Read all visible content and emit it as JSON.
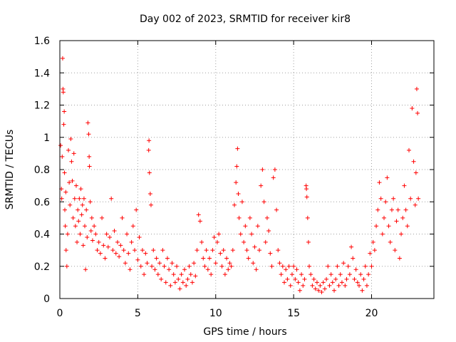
{
  "chart_data": {
    "type": "scatter",
    "title": "Day 002 of 2023, SRMTID for receiver kir8",
    "xlabel": "GPS time / hours",
    "ylabel": "SRMTID / TECUs",
    "xlim": [
      0,
      24
    ],
    "ylim": [
      0,
      1.6
    ],
    "xticks": [
      0,
      5,
      10,
      15,
      20
    ],
    "yticks": [
      0,
      0.2,
      0.4,
      0.6,
      0.8,
      1,
      1.2,
      1.4,
      1.6
    ],
    "grid": true,
    "marker": "plus",
    "color": "#ff0000",
    "series": [
      {
        "name": "SRMTID",
        "points": [
          [
            0.05,
            0.95
          ],
          [
            0.1,
            0.68
          ],
          [
            0.12,
            0.62
          ],
          [
            0.15,
            0.88
          ],
          [
            0.18,
            1.49
          ],
          [
            0.2,
            1.3
          ],
          [
            0.22,
            1.28
          ],
          [
            0.25,
            1.08
          ],
          [
            0.28,
            1.16
          ],
          [
            0.3,
            0.78
          ],
          [
            0.32,
            0.55
          ],
          [
            0.35,
            0.45
          ],
          [
            0.38,
            0.66
          ],
          [
            0.4,
            0.3
          ],
          [
            0.45,
            0.2
          ],
          [
            0.5,
            0.4
          ],
          [
            0.55,
            0.92
          ],
          [
            0.6,
            0.72
          ],
          [
            0.65,
            0.58
          ],
          [
            0.7,
            0.99
          ],
          [
            0.75,
            0.85
          ],
          [
            0.8,
            0.73
          ],
          [
            0.85,
            0.5
          ],
          [
            0.9,
            0.9
          ],
          [
            0.95,
            0.62
          ],
          [
            1.0,
            0.45
          ],
          [
            1.05,
            0.7
          ],
          [
            1.1,
            0.35
          ],
          [
            1.15,
            0.55
          ],
          [
            1.2,
            0.48
          ],
          [
            1.25,
            0.62
          ],
          [
            1.3,
            0.4
          ],
          [
            1.35,
            0.68
          ],
          [
            1.4,
            0.52
          ],
          [
            1.45,
            0.58
          ],
          [
            1.5,
            0.33
          ],
          [
            1.55,
            0.62
          ],
          [
            1.6,
            0.45
          ],
          [
            1.65,
            0.18
          ],
          [
            1.7,
            0.55
          ],
          [
            1.75,
            0.38
          ],
          [
            1.8,
            1.09
          ],
          [
            1.85,
            1.02
          ],
          [
            1.88,
            0.88
          ],
          [
            1.9,
            0.82
          ],
          [
            1.95,
            0.6
          ],
          [
            2.0,
            0.42
          ],
          [
            2.05,
            0.5
          ],
          [
            2.1,
            0.36
          ],
          [
            2.2,
            0.45
          ],
          [
            2.3,
            0.4
          ],
          [
            2.4,
            0.3
          ],
          [
            2.5,
            0.35
          ],
          [
            2.6,
            0.28
          ],
          [
            2.7,
            0.5
          ],
          [
            2.8,
            0.33
          ],
          [
            2.9,
            0.25
          ],
          [
            3.0,
            0.4
          ],
          [
            3.1,
            0.32
          ],
          [
            3.2,
            0.38
          ],
          [
            3.3,
            0.62
          ],
          [
            3.4,
            0.3
          ],
          [
            3.5,
            0.42
          ],
          [
            3.6,
            0.28
          ],
          [
            3.7,
            0.35
          ],
          [
            3.8,
            0.26
          ],
          [
            3.9,
            0.33
          ],
          [
            4.0,
            0.5
          ],
          [
            4.1,
            0.3
          ],
          [
            4.2,
            0.22
          ],
          [
            4.3,
            0.4
          ],
          [
            4.4,
            0.28
          ],
          [
            4.5,
            0.18
          ],
          [
            4.6,
            0.35
          ],
          [
            4.7,
            0.45
          ],
          [
            4.8,
            0.3
          ],
          [
            4.9,
            0.55
          ],
          [
            5.0,
            0.24
          ],
          [
            5.1,
            0.38
          ],
          [
            5.2,
            0.2
          ],
          [
            5.3,
            0.3
          ],
          [
            5.4,
            0.15
          ],
          [
            5.5,
            0.28
          ],
          [
            5.6,
            0.22
          ],
          [
            5.7,
            0.92
          ],
          [
            5.72,
            0.98
          ],
          [
            5.75,
            0.78
          ],
          [
            5.8,
            0.65
          ],
          [
            5.85,
            0.58
          ],
          [
            5.9,
            0.2
          ],
          [
            6.0,
            0.3
          ],
          [
            6.1,
            0.18
          ],
          [
            6.2,
            0.25
          ],
          [
            6.3,
            0.15
          ],
          [
            6.4,
            0.22
          ],
          [
            6.5,
            0.12
          ],
          [
            6.6,
            0.3
          ],
          [
            6.7,
            0.2
          ],
          [
            6.8,
            0.1
          ],
          [
            6.9,
            0.25
          ],
          [
            7.0,
            0.18
          ],
          [
            7.1,
            0.08
          ],
          [
            7.2,
            0.22
          ],
          [
            7.3,
            0.15
          ],
          [
            7.4,
            0.1
          ],
          [
            7.5,
            0.2
          ],
          [
            7.6,
            0.12
          ],
          [
            7.7,
            0.06
          ],
          [
            7.8,
            0.15
          ],
          [
            7.9,
            0.1
          ],
          [
            8.0,
            0.18
          ],
          [
            8.1,
            0.08
          ],
          [
            8.2,
            0.12
          ],
          [
            8.3,
            0.2
          ],
          [
            8.4,
            0.15
          ],
          [
            8.5,
            0.1
          ],
          [
            8.6,
            0.22
          ],
          [
            8.7,
            0.14
          ],
          [
            8.8,
            0.3
          ],
          [
            8.9,
            0.52
          ],
          [
            9.0,
            0.48
          ],
          [
            9.1,
            0.35
          ],
          [
            9.2,
            0.25
          ],
          [
            9.3,
            0.2
          ],
          [
            9.4,
            0.3
          ],
          [
            9.5,
            0.18
          ],
          [
            9.6,
            0.25
          ],
          [
            9.7,
            0.15
          ],
          [
            9.8,
            0.3
          ],
          [
            9.9,
            0.38
          ],
          [
            10.0,
            0.22
          ],
          [
            10.1,
            0.35
          ],
          [
            10.2,
            0.4
          ],
          [
            10.3,
            0.28
          ],
          [
            10.4,
            0.2
          ],
          [
            10.5,
            0.3
          ],
          [
            10.6,
            0.15
          ],
          [
            10.7,
            0.25
          ],
          [
            10.8,
            0.18
          ],
          [
            10.9,
            0.22
          ],
          [
            11.0,
            0.2
          ],
          [
            11.1,
            0.3
          ],
          [
            11.2,
            0.58
          ],
          [
            11.3,
            0.72
          ],
          [
            11.35,
            0.82
          ],
          [
            11.4,
            0.93
          ],
          [
            11.45,
            0.65
          ],
          [
            11.5,
            0.5
          ],
          [
            11.6,
            0.4
          ],
          [
            11.7,
            0.6
          ],
          [
            11.8,
            0.35
          ],
          [
            11.9,
            0.45
          ],
          [
            12.0,
            0.3
          ],
          [
            12.1,
            0.25
          ],
          [
            12.2,
            0.5
          ],
          [
            12.3,
            0.4
          ],
          [
            12.4,
            0.22
          ],
          [
            12.5,
            0.32
          ],
          [
            12.6,
            0.18
          ],
          [
            12.7,
            0.45
          ],
          [
            12.8,
            0.3
          ],
          [
            12.9,
            0.7
          ],
          [
            13.0,
            0.8
          ],
          [
            13.1,
            0.6
          ],
          [
            13.2,
            0.35
          ],
          [
            13.3,
            0.5
          ],
          [
            13.4,
            0.42
          ],
          [
            13.5,
            0.28
          ],
          [
            13.6,
            0.2
          ],
          [
            13.7,
            0.75
          ],
          [
            13.8,
            0.8
          ],
          [
            13.9,
            0.55
          ],
          [
            14.0,
            0.3
          ],
          [
            14.1,
            0.22
          ],
          [
            14.2,
            0.15
          ],
          [
            14.3,
            0.2
          ],
          [
            14.4,
            0.1
          ],
          [
            14.5,
            0.18
          ],
          [
            14.6,
            0.12
          ],
          [
            14.7,
            0.2
          ],
          [
            14.8,
            0.08
          ],
          [
            14.9,
            0.15
          ],
          [
            15.0,
            0.2
          ],
          [
            15.1,
            0.12
          ],
          [
            15.2,
            0.18
          ],
          [
            15.3,
            0.1
          ],
          [
            15.4,
            0.05
          ],
          [
            15.5,
            0.15
          ],
          [
            15.6,
            0.08
          ],
          [
            15.7,
            0.12
          ],
          [
            15.8,
            0.7
          ],
          [
            15.82,
            0.68
          ],
          [
            15.85,
            0.63
          ],
          [
            15.9,
            0.5
          ],
          [
            15.95,
            0.35
          ],
          [
            16.0,
            0.2
          ],
          [
            16.1,
            0.15
          ],
          [
            16.2,
            0.08
          ],
          [
            16.3,
            0.12
          ],
          [
            16.4,
            0.06
          ],
          [
            16.5,
            0.1
          ],
          [
            16.6,
            0.05
          ],
          [
            16.7,
            0.08
          ],
          [
            16.8,
            0.04
          ],
          [
            16.9,
            0.1
          ],
          [
            17.0,
            0.06
          ],
          [
            17.1,
            0.12
          ],
          [
            17.2,
            0.2
          ],
          [
            17.3,
            0.08
          ],
          [
            17.4,
            0.15
          ],
          [
            17.5,
            0.1
          ],
          [
            17.6,
            0.05
          ],
          [
            17.7,
            0.12
          ],
          [
            17.8,
            0.2
          ],
          [
            17.9,
            0.08
          ],
          [
            18.0,
            0.15
          ],
          [
            18.1,
            0.1
          ],
          [
            18.2,
            0.22
          ],
          [
            18.3,
            0.08
          ],
          [
            18.4,
            0.12
          ],
          [
            18.5,
            0.2
          ],
          [
            18.6,
            0.15
          ],
          [
            18.7,
            0.32
          ],
          [
            18.8,
            0.25
          ],
          [
            18.9,
            0.12
          ],
          [
            19.0,
            0.18
          ],
          [
            19.1,
            0.1
          ],
          [
            19.2,
            0.08
          ],
          [
            19.3,
            0.15
          ],
          [
            19.4,
            0.05
          ],
          [
            19.5,
            0.12
          ],
          [
            19.6,
            0.2
          ],
          [
            19.7,
            0.08
          ],
          [
            19.8,
            0.15
          ],
          [
            19.9,
            0.28
          ],
          [
            20.0,
            0.2
          ],
          [
            20.1,
            0.35
          ],
          [
            20.2,
            0.3
          ],
          [
            20.3,
            0.45
          ],
          [
            20.4,
            0.55
          ],
          [
            20.5,
            0.72
          ],
          [
            20.6,
            0.62
          ],
          [
            20.7,
            0.4
          ],
          [
            20.8,
            0.5
          ],
          [
            20.9,
            0.6
          ],
          [
            21.0,
            0.75
          ],
          [
            21.1,
            0.45
          ],
          [
            21.2,
            0.35
          ],
          [
            21.3,
            0.55
          ],
          [
            21.4,
            0.62
          ],
          [
            21.5,
            0.3
          ],
          [
            21.6,
            0.48
          ],
          [
            21.7,
            0.55
          ],
          [
            21.8,
            0.25
          ],
          [
            21.9,
            0.4
          ],
          [
            22.0,
            0.5
          ],
          [
            22.1,
            0.7
          ],
          [
            22.2,
            0.55
          ],
          [
            22.3,
            0.45
          ],
          [
            22.4,
            0.92
          ],
          [
            22.5,
            0.62
          ],
          [
            22.6,
            1.18
          ],
          [
            22.7,
            0.85
          ],
          [
            22.8,
            0.58
          ],
          [
            22.85,
            0.78
          ],
          [
            22.9,
            1.3
          ],
          [
            22.95,
            1.15
          ],
          [
            23.0,
            0.62
          ]
        ]
      }
    ]
  }
}
